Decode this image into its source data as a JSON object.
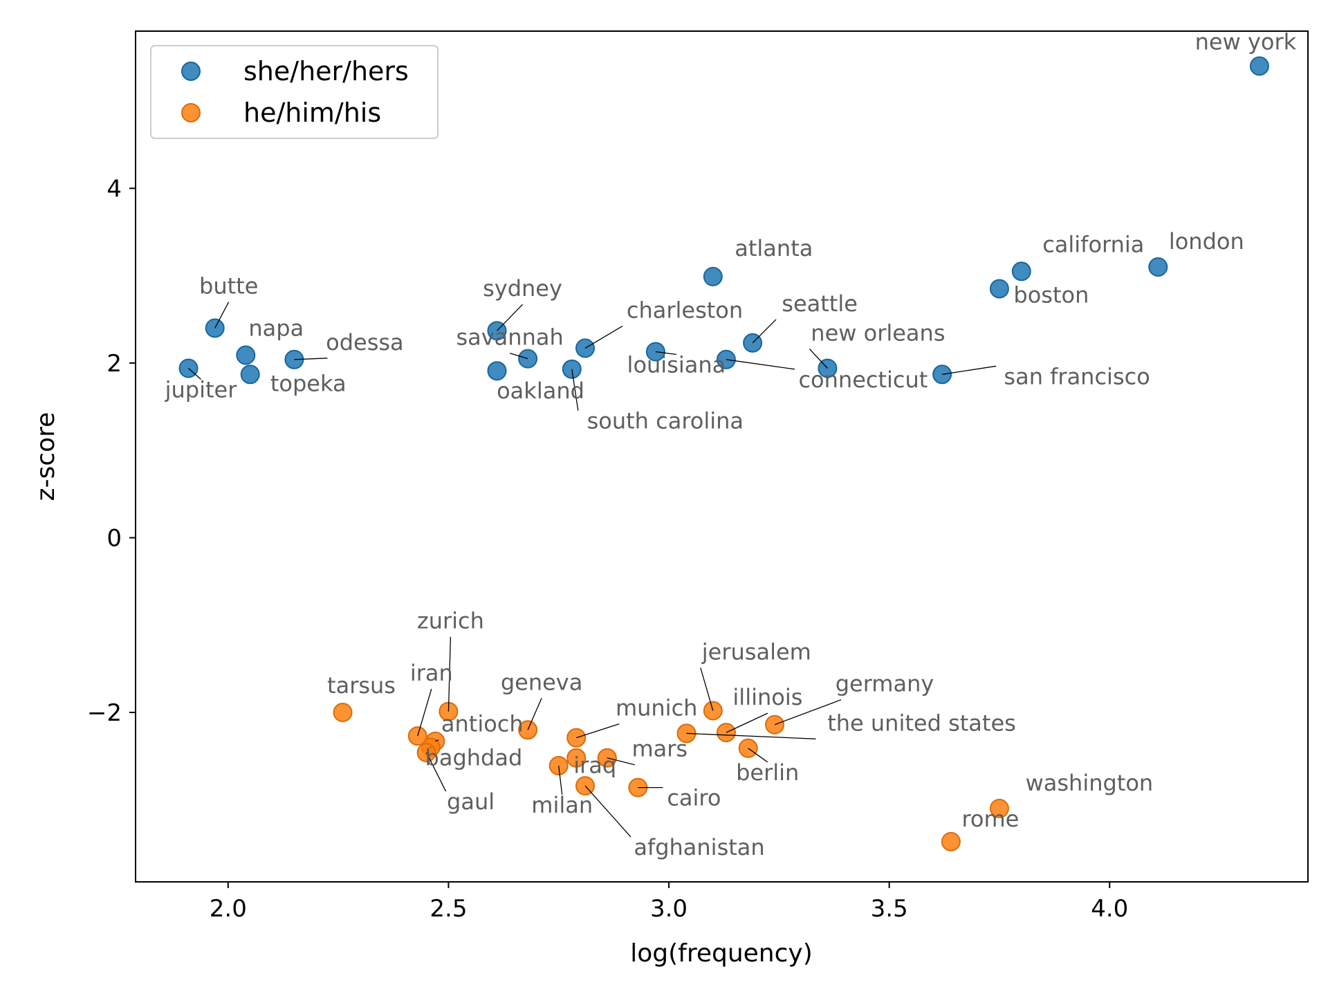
{
  "chart_data": {
    "type": "scatter",
    "xlabel": "log(frequency)",
    "ylabel": "z-score",
    "xlim": [
      1.79,
      4.45
    ],
    "ylim": [
      -3.94,
      5.8
    ],
    "xticks": [
      2.0,
      2.5,
      3.0,
      3.5,
      4.0
    ],
    "xtick_labels": [
      "2.0",
      "2.5",
      "3.0",
      "3.5",
      "4.0"
    ],
    "yticks": [
      -2,
      0,
      2,
      4
    ],
    "ytick_labels": [
      "−2",
      "0",
      "2",
      "4"
    ],
    "grid": false,
    "legend": "top-left",
    "series": [
      {
        "name": "she/her/hers",
        "color": "#1f77b4",
        "points": [
          {
            "label": "new york",
            "x": 4.34,
            "y": 5.4
          },
          {
            "label": "london",
            "x": 4.11,
            "y": 3.1
          },
          {
            "label": "california",
            "x": 3.8,
            "y": 3.05
          },
          {
            "label": "boston",
            "x": 3.75,
            "y": 2.85
          },
          {
            "label": "san francisco",
            "x": 3.62,
            "y": 1.87
          },
          {
            "label": "new orleans",
            "x": 3.36,
            "y": 1.94
          },
          {
            "label": "seattle",
            "x": 3.19,
            "y": 2.23
          },
          {
            "label": "connecticut",
            "x": 3.13,
            "y": 2.04
          },
          {
            "label": "atlanta",
            "x": 3.1,
            "y": 2.99
          },
          {
            "label": "louisiana",
            "x": 2.97,
            "y": 2.13
          },
          {
            "label": "charleston",
            "x": 2.81,
            "y": 2.17
          },
          {
            "label": "south carolina",
            "x": 2.78,
            "y": 1.93
          },
          {
            "label": "savannah",
            "x": 2.68,
            "y": 2.05
          },
          {
            "label": "sydney",
            "x": 2.61,
            "y": 2.37
          },
          {
            "label": "oakland",
            "x": 2.61,
            "y": 1.91
          },
          {
            "label": "odessa",
            "x": 2.15,
            "y": 2.04
          },
          {
            "label": "topeka",
            "x": 2.05,
            "y": 1.87
          },
          {
            "label": "napa",
            "x": 2.04,
            "y": 2.09
          },
          {
            "label": "butte",
            "x": 1.97,
            "y": 2.4
          },
          {
            "label": "jupiter",
            "x": 1.91,
            "y": 1.94
          }
        ]
      },
      {
        "name": "he/him/his",
        "color": "#ff7f0e",
        "points": [
          {
            "label": "washington",
            "x": 3.75,
            "y": -3.1
          },
          {
            "label": "rome",
            "x": 3.64,
            "y": -3.48
          },
          {
            "label": "germany",
            "x": 3.24,
            "y": -2.14
          },
          {
            "label": "berlin",
            "x": 3.18,
            "y": -2.41
          },
          {
            "label": "illinois",
            "x": 3.13,
            "y": -2.23
          },
          {
            "label": "jerusalem",
            "x": 3.1,
            "y": -1.98
          },
          {
            "label": "the united states",
            "x": 3.04,
            "y": -2.24
          },
          {
            "label": "cairo",
            "x": 2.93,
            "y": -2.86
          },
          {
            "label": "mars",
            "x": 2.86,
            "y": -2.52
          },
          {
            "label": "afghanistan",
            "x": 2.81,
            "y": -2.84
          },
          {
            "label": "munich",
            "x": 2.79,
            "y": -2.29
          },
          {
            "label": "iraq",
            "x": 2.79,
            "y": -2.52
          },
          {
            "label": "milan",
            "x": 2.75,
            "y": -2.61
          },
          {
            "label": "geneva",
            "x": 2.68,
            "y": -2.2
          },
          {
            "label": "zurich",
            "x": 2.5,
            "y": -1.99
          },
          {
            "label": "antioch",
            "x": 2.47,
            "y": -2.33
          },
          {
            "label": "baghdad",
            "x": 2.46,
            "y": -2.4
          },
          {
            "label": "gaul",
            "x": 2.45,
            "y": -2.46
          },
          {
            "label": "iran",
            "x": 2.43,
            "y": -2.27
          },
          {
            "label": "tarsus",
            "x": 2.26,
            "y": -2.0
          }
        ]
      }
    ]
  }
}
